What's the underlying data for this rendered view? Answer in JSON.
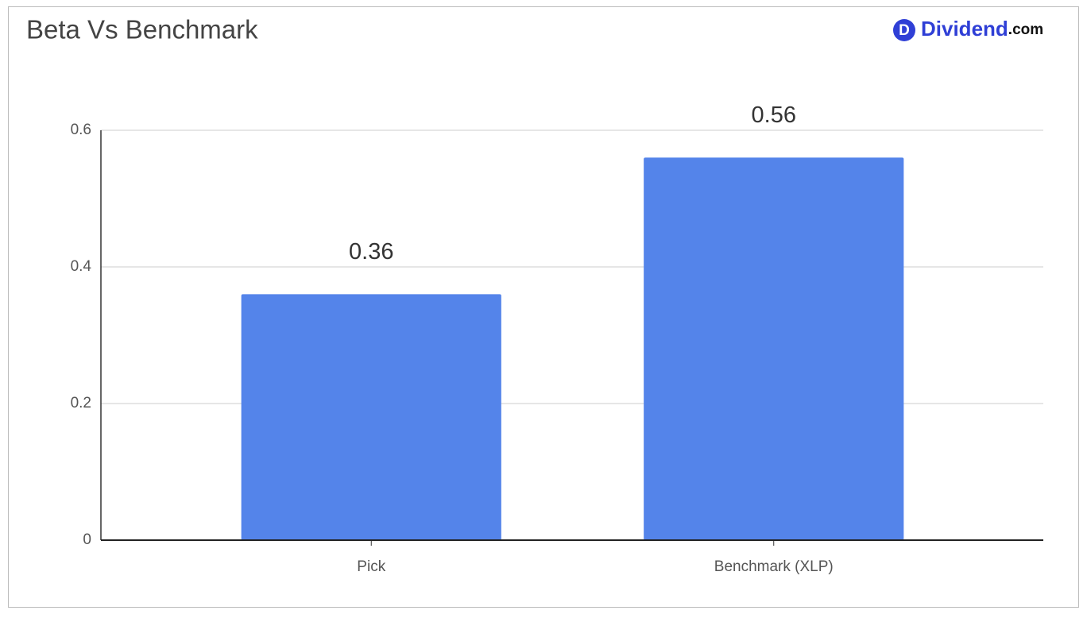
{
  "chart_data": {
    "type": "bar",
    "title": "Beta Vs Benchmark",
    "logo": {
      "icon": "D",
      "name": "Dividend",
      "suffix": ".com"
    },
    "categories": [
      "Pick",
      "Benchmark (XLP)"
    ],
    "values": [
      0.36,
      0.56
    ],
    "color": "#5484ea",
    "ylim": [
      0,
      0.6
    ],
    "yticks": [
      0,
      0.2,
      0.4,
      0.6
    ],
    "grid": true
  }
}
